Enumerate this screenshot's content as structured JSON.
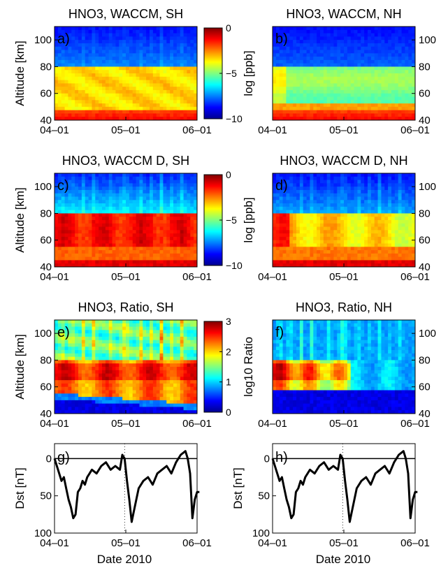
{
  "chart_data": {
    "type": "heatmap",
    "date_ticks": [
      "04–01",
      "05–01",
      "06–01"
    ],
    "xlabel": "Date 2010",
    "panels": [
      {
        "id": "a",
        "label": "a)",
        "title": "HNO3, WACCM, SH",
        "ylabel": "Altitude [km]",
        "yticks": [
          "40",
          "60",
          "80",
          "100"
        ],
        "yaxis": "left",
        "field": "waccm",
        "colorbar": {
          "label": "log [ppb]",
          "ticks": [
            "0",
            "−5",
            "−10"
          ],
          "range": [
            -10,
            0
          ]
        }
      },
      {
        "id": "b",
        "label": "b)",
        "title": "HNO3, WACCM, NH",
        "ylabel": "",
        "yticks": [
          "40",
          "60",
          "80",
          "100"
        ],
        "yaxis": "right",
        "field": "waccm_nh"
      },
      {
        "id": "c",
        "label": "c)",
        "title": "HNO3, WACCM D, SH",
        "ylabel": "Altitude [km]",
        "yticks": [
          "40",
          "60",
          "80",
          "100"
        ],
        "yaxis": "left",
        "field": "waccmd",
        "colorbar": {
          "label": "log [ppb]",
          "ticks": [
            "0",
            "−5",
            "−10"
          ],
          "range": [
            -10,
            0
          ]
        }
      },
      {
        "id": "d",
        "label": "d)",
        "title": "HNO3, WACCM D, NH",
        "ylabel": "",
        "yticks": [
          "40",
          "60",
          "80",
          "100"
        ],
        "yaxis": "right",
        "field": "waccmd_nh"
      },
      {
        "id": "e",
        "label": "e)",
        "title": "HNO3, Ratio, SH",
        "ylabel": "Altitude [km]",
        "yticks": [
          "40",
          "60",
          "80",
          "100"
        ],
        "yaxis": "left",
        "field": "ratio_sh",
        "colorbar": {
          "label": "log10 Ratio",
          "ticks": [
            "3",
            "2",
            "1",
            "0"
          ],
          "range": [
            0,
            3
          ]
        }
      },
      {
        "id": "f",
        "label": "f)",
        "title": "HNO3, Ratio, NH",
        "ylabel": "",
        "yticks": [
          "40",
          "60",
          "80",
          "100"
        ],
        "yaxis": "right",
        "field": "ratio_nh"
      }
    ],
    "altitude_range_km": [
      40,
      110
    ],
    "dst_panels": [
      {
        "id": "g",
        "label": "g)",
        "ylabel": "Dst [nT]",
        "yticks": [
          "0",
          "50",
          "100"
        ]
      },
      {
        "id": "h",
        "label": "h)",
        "ylabel": "Dst [nT]",
        "yticks": [
          "0",
          "50",
          "100"
        ]
      }
    ],
    "dst_range_nT": [
      100,
      -20
    ],
    "dst_series": {
      "x_day": [
        0,
        2,
        3,
        4,
        5,
        6,
        7,
        8,
        9,
        10,
        11,
        12,
        13,
        14,
        16,
        18,
        20,
        22,
        24,
        26,
        28,
        29,
        30,
        31,
        32,
        33,
        34,
        36,
        38,
        40,
        42,
        44,
        46,
        48,
        50,
        52,
        54,
        56,
        57,
        58,
        59,
        60,
        61,
        62
      ],
      "dst_nT": [
        0,
        20,
        30,
        25,
        40,
        55,
        65,
        80,
        75,
        45,
        40,
        30,
        35,
        25,
        15,
        20,
        10,
        5,
        15,
        10,
        15,
        -5,
        0,
        30,
        55,
        85,
        70,
        40,
        30,
        25,
        35,
        20,
        15,
        10,
        20,
        5,
        -5,
        -10,
        0,
        20,
        80,
        55,
        45,
        45
      ]
    }
  }
}
